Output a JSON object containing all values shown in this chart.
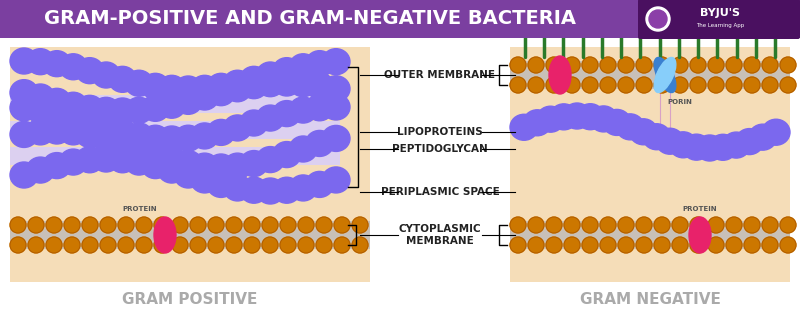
{
  "title": "GRAM-POSITIVE AND GRAM-NEGATIVE BACTERIA",
  "title_bg": "#7b3fa0",
  "title_color": "#ffffff",
  "title_fontsize": 14,
  "bg_color": "#ffffff",
  "diagram_bg": "#f5ddb8",
  "gram_positive_label": "GRAM POSITIVE",
  "gram_negative_label": "GRAM NEGATIVE",
  "labels_color": "#aaaaaa",
  "labels_fontsize": 11,
  "purple_color": "#7b68ee",
  "orange_color": "#cc7700",
  "orange_dark": "#aa5500",
  "pink_color": "#e8226a",
  "green_color": "#2a7a2a",
  "blue_color": "#3a80d0",
  "blue_light": "#87CEFA",
  "gray_band": "#c8c0b8",
  "annotation_fontsize": 7.5,
  "ann_color": "#222222"
}
